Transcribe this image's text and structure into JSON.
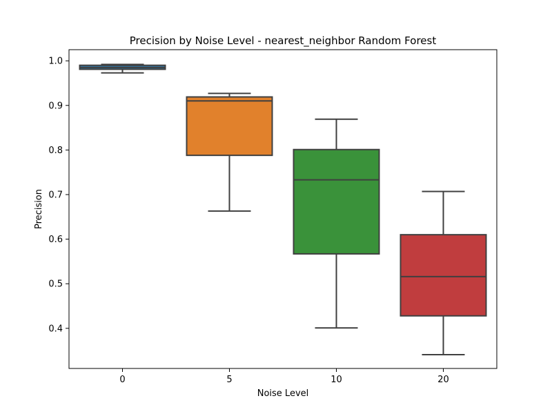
{
  "chart_data": {
    "type": "box",
    "title": "Precision by Noise Level - nearest_neighbor Random Forest",
    "xlabel": "Noise Level",
    "ylabel": "Precision",
    "categories": [
      "0",
      "5",
      "10",
      "20"
    ],
    "ylim": [
      0.31,
      1.025
    ],
    "yticks": [
      0.4,
      0.5,
      0.6,
      0.7,
      0.8,
      0.9,
      1.0
    ],
    "ytick_labels": [
      "0.4",
      "0.5",
      "0.6",
      "0.7",
      "0.8",
      "0.9",
      "1.0"
    ],
    "grid": false,
    "boxes": [
      {
        "category": "0",
        "whisker_low": 0.973,
        "q1": 0.981,
        "median": 0.985,
        "q3": 0.99,
        "whisker_high": 0.992,
        "color": "#3274a1"
      },
      {
        "category": "5",
        "whisker_low": 0.663,
        "q1": 0.788,
        "median": 0.91,
        "q3": 0.919,
        "whisker_high": 0.927,
        "color": "#e1812c"
      },
      {
        "category": "10",
        "whisker_low": 0.401,
        "q1": 0.567,
        "median": 0.733,
        "q3": 0.801,
        "whisker_high": 0.869,
        "color": "#3a923a"
      },
      {
        "category": "20",
        "whisker_low": 0.341,
        "q1": 0.428,
        "median": 0.516,
        "q3": 0.61,
        "whisker_high": 0.707,
        "color": "#c03d3e"
      }
    ]
  }
}
